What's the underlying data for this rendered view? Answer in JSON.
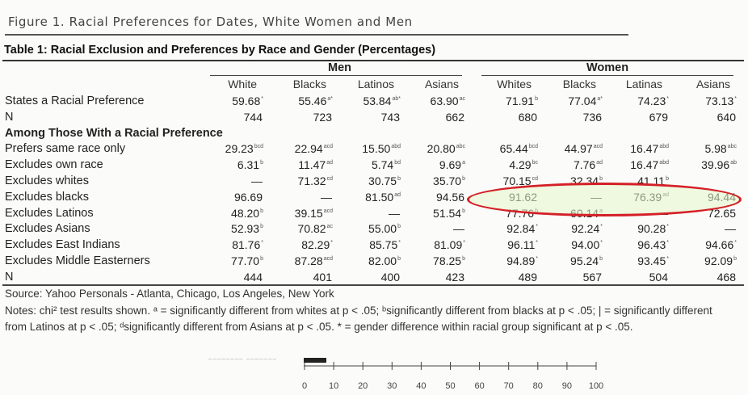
{
  "figure_title": "Figure 1. Racial Preferences for Dates, White Women and Men",
  "table_title": "Table 1: Racial Exclusion and Preferences by Race and Gender (Percentages)",
  "groups": [
    "Men",
    "Women"
  ],
  "columns": [
    "White",
    "Blacks",
    "Latinos",
    "Asians",
    "Whites",
    "Blacks",
    "Latinas",
    "Asians"
  ],
  "rows": [
    {
      "label": "States a Racial Preference",
      "bold": false,
      "cells": [
        [
          "59.68",
          "*"
        ],
        [
          "55.46",
          "a*"
        ],
        [
          "53.84",
          "ab*"
        ],
        [
          "63.90",
          "ac"
        ],
        [
          "71.91",
          "b"
        ],
        [
          "77.04",
          "a*"
        ],
        [
          "74.23",
          "*"
        ],
        [
          "73.13",
          "*"
        ]
      ]
    },
    {
      "label": "N",
      "bold": false,
      "cells": [
        [
          "744",
          ""
        ],
        [
          "723",
          ""
        ],
        [
          "743",
          ""
        ],
        [
          "662",
          ""
        ],
        [
          "680",
          ""
        ],
        [
          "736",
          ""
        ],
        [
          "679",
          ""
        ],
        [
          "640",
          ""
        ]
      ]
    },
    {
      "label": "Among Those With a Racial Preference",
      "bold": true,
      "cells": []
    },
    {
      "label": "Prefers same race only",
      "bold": false,
      "cells": [
        [
          "29.23",
          "bcd"
        ],
        [
          "22.94",
          "acd"
        ],
        [
          "15.50",
          "abd"
        ],
        [
          "20.80",
          "abc"
        ],
        [
          "65.44",
          "bcd"
        ],
        [
          "44.97",
          "acd"
        ],
        [
          "16.47",
          "abd"
        ],
        [
          "5.98",
          "abc"
        ]
      ]
    },
    {
      "label": "Excludes own race",
      "bold": false,
      "cells": [
        [
          "6.31",
          "b"
        ],
        [
          "11.47",
          "ad"
        ],
        [
          "5.74",
          "bd"
        ],
        [
          "9.69",
          "a"
        ],
        [
          "4.29",
          "bc"
        ],
        [
          "7.76",
          "ad"
        ],
        [
          "16.47",
          "abd"
        ],
        [
          "39.96",
          "ab"
        ]
      ]
    },
    {
      "label": "Excludes whites",
      "bold": false,
      "cells": [
        [
          "—",
          ""
        ],
        [
          "71.32",
          "cd"
        ],
        [
          "30.75",
          "b"
        ],
        [
          "35.70",
          "b"
        ],
        [
          "70.15",
          "cd"
        ],
        [
          "32.34",
          "b"
        ],
        [
          "41.11",
          "b"
        ],
        [
          "",
          ""
        ]
      ]
    },
    {
      "label": "Excludes blacks",
      "bold": false,
      "cells": [
        [
          "96.69",
          ""
        ],
        [
          "—",
          ""
        ],
        [
          "81.50",
          "ad"
        ],
        [
          "94.56",
          ""
        ],
        [
          "91.62",
          ""
        ],
        [
          "—",
          ""
        ],
        [
          "76.39",
          "ad"
        ],
        [
          "94.44",
          ""
        ]
      ]
    },
    {
      "label": "Excludes Latinos",
      "bold": false,
      "cells": [
        [
          "48.20",
          "b"
        ],
        [
          "39.15",
          "acd"
        ],
        [
          "—",
          ""
        ],
        [
          "51.54",
          "b"
        ],
        [
          "77.76",
          "b"
        ],
        [
          "60.14",
          "a"
        ],
        [
          "—",
          ""
        ],
        [
          "72.65",
          ""
        ]
      ]
    },
    {
      "label": "Excludes Asians",
      "bold": false,
      "cells": [
        [
          "52.93",
          "b"
        ],
        [
          "70.82",
          "ac"
        ],
        [
          "55.00",
          "b"
        ],
        [
          "—",
          ""
        ],
        [
          "92.84",
          "*"
        ],
        [
          "92.24",
          "*"
        ],
        [
          "90.28",
          "*"
        ],
        [
          "—",
          ""
        ]
      ]
    },
    {
      "label": "Excludes East Indians",
      "bold": false,
      "cells": [
        [
          "81.76",
          "*"
        ],
        [
          "82.29",
          "*"
        ],
        [
          "85.75",
          "*"
        ],
        [
          "81.09",
          "*"
        ],
        [
          "96.11",
          "*"
        ],
        [
          "94.00",
          "*"
        ],
        [
          "96.43",
          "*"
        ],
        [
          "94.66",
          "*"
        ]
      ]
    },
    {
      "label": "Excludes Middle Easterners",
      "bold": false,
      "cells": [
        [
          "77.70",
          "b"
        ],
        [
          "87.28",
          "acd"
        ],
        [
          "82.00",
          "b"
        ],
        [
          "78.25",
          "b"
        ],
        [
          "94.89",
          "*"
        ],
        [
          "95.24",
          "b"
        ],
        [
          "93.45",
          "*"
        ],
        [
          "92.09",
          "b"
        ]
      ]
    },
    {
      "label": "N",
      "bold": false,
      "cells": [
        [
          "444",
          ""
        ],
        [
          "401",
          ""
        ],
        [
          "400",
          ""
        ],
        [
          "423",
          ""
        ],
        [
          "489",
          ""
        ],
        [
          "567",
          ""
        ],
        [
          "504",
          ""
        ],
        [
          "468",
          ""
        ]
      ]
    }
  ],
  "source": "Source: Yahoo Personals - Atlanta, Chicago, Los Angeles, New York",
  "notes": "Notes: chi² test results shown. ᵃ = significantly different from whites at p < .05; ᵇsignificantly different from blacks at p < .05; | = significantly different from Latinos at p < .05; ᵈsignificantly different from Asians at p < .05. * = gender difference within racial group significant at p < .05.",
  "highlight_color": "#d41f26",
  "scale_ticks": [
    "0",
    "10",
    "20",
    "30",
    "40",
    "50",
    "60",
    "70",
    "80",
    "90",
    "100"
  ]
}
